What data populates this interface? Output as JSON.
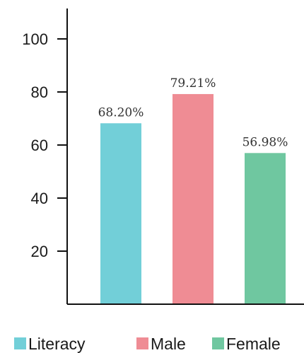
{
  "chart_data": {
    "type": "bar",
    "categories": [
      "Literacy",
      "Male",
      "Female"
    ],
    "values": [
      68.2,
      79.21,
      56.98
    ],
    "data_labels": [
      "68.20%",
      "79.21%",
      "56.98%"
    ],
    "colors": [
      "#72cfd8",
      "#ef8c94",
      "#6fc7a0"
    ],
    "yticks": [
      20,
      40,
      60,
      80,
      100
    ],
    "ylim": [
      0,
      100
    ],
    "grid": false,
    "legend_position": "bottom"
  }
}
